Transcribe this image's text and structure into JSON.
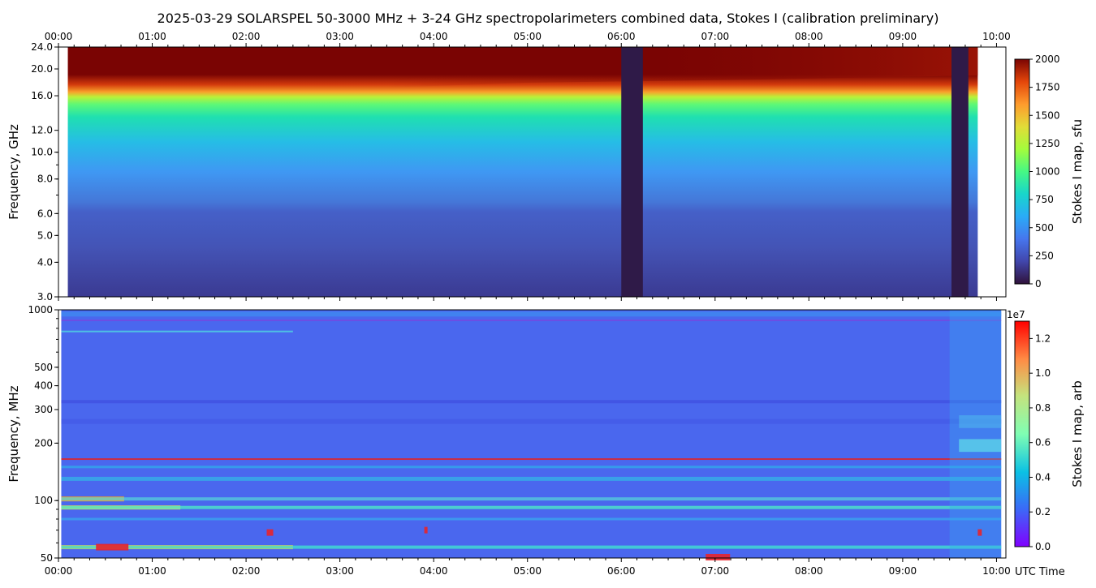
{
  "title": "2025-03-29  SOLARSPEL  50-3000 MHz  +  3-24 GHz  spectropolarimeters combined data,  Stokes I  (calibration preliminary)",
  "x_axis_label": "UTC Time",
  "chart_data": [
    {
      "type": "heatmap",
      "name": "upper-panel",
      "xlabel": "",
      "ylabel": "Frequency, GHz",
      "x_ticks": [
        "00:00",
        "01:00",
        "02:00",
        "03:00",
        "04:00",
        "05:00",
        "06:00",
        "07:00",
        "08:00",
        "09:00",
        "10:00"
      ],
      "xlim_hours": [
        0,
        10.1
      ],
      "y_scale": "log",
      "ylim": [
        3.0,
        24.0
      ],
      "y_ticks": [
        {
          "value": 3.0,
          "label": "3.0"
        },
        {
          "value": 4.0,
          "label": "4.0"
        },
        {
          "value": 5.0,
          "label": "5.0"
        },
        {
          "value": 6.0,
          "label": "6.0"
        },
        {
          "value": 8.0,
          "label": "8.0"
        },
        {
          "value": 10.0,
          "label": "10.0"
        },
        {
          "value": 12.0,
          "label": "12.0"
        },
        {
          "value": 16.0,
          "label": "16.0"
        },
        {
          "value": 20.0,
          "label": "20.0"
        },
        {
          "value": 24.0,
          "label": "24.0"
        }
      ],
      "data_start_hours": 0.1,
      "data_end_hours": 9.8,
      "gaps_hours": [
        [
          6.0,
          6.23
        ],
        [
          9.52,
          9.7
        ]
      ],
      "colormap": "turbo",
      "colorbar": {
        "label": "Stokes I map, sfu",
        "min": 0,
        "max": 2000,
        "ticks": [
          0,
          250,
          500,
          750,
          1000,
          1250,
          1500,
          1750,
          2000
        ],
        "exponent_label": ""
      }
    },
    {
      "type": "heatmap",
      "name": "lower-panel",
      "xlabel": "UTC Time",
      "ylabel": "Frequency, MHz",
      "x_ticks": [
        "00:00",
        "01:00",
        "02:00",
        "03:00",
        "04:00",
        "05:00",
        "06:00",
        "07:00",
        "08:00",
        "09:00",
        "10:00"
      ],
      "xlim_hours": [
        0,
        10.1
      ],
      "y_scale": "log",
      "ylim": [
        50,
        1000
      ],
      "y_ticks": [
        {
          "value": 50,
          "label": "50"
        },
        {
          "value": 100,
          "label": "100"
        },
        {
          "value": 200,
          "label": "200"
        },
        {
          "value": 300,
          "label": "300"
        },
        {
          "value": 400,
          "label": "400"
        },
        {
          "value": 500,
          "label": "500"
        },
        {
          "value": 1000,
          "label": "1000"
        }
      ],
      "data_start_hours": 0.03,
      "data_end_hours": 10.05,
      "colormap": "rainbow",
      "colorbar": {
        "label": "Stokes I map, arb",
        "min": 0.0,
        "max": 1.3,
        "ticks": [
          {
            "value": 0.0,
            "label": "0.0"
          },
          {
            "value": 0.2,
            "label": "0.2"
          },
          {
            "value": 0.4,
            "label": "0.4"
          },
          {
            "value": 0.6,
            "label": "0.6"
          },
          {
            "value": 0.8,
            "label": "0.8"
          },
          {
            "value": 1.0,
            "label": "1.0"
          },
          {
            "value": 1.2,
            "label": "1.2"
          }
        ],
        "exponent_label": "1e7"
      }
    }
  ]
}
